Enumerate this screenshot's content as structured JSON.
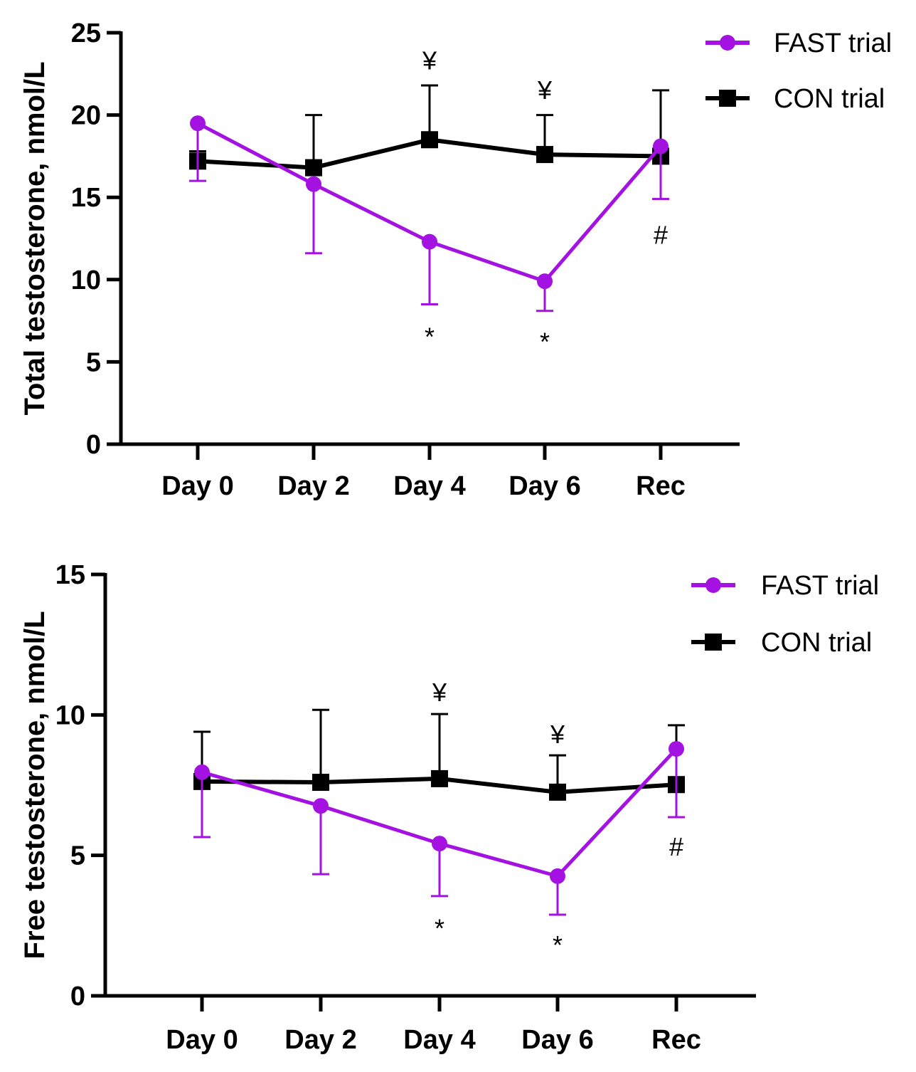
{
  "colors": {
    "fast": "#a312e0",
    "con": "#000000"
  },
  "chart_data": [
    {
      "type": "line",
      "ylabel": "Total testosterone, nmol/L",
      "categories": [
        "Day 0",
        "Day 2",
        "Day 4",
        "Day 6",
        "Rec"
      ],
      "ylim": [
        0,
        25
      ],
      "yticks": [
        "0",
        "5",
        "10",
        "15",
        "20",
        "25"
      ],
      "legend_position": "top-right",
      "series": [
        {
          "name": "FAST trial",
          "marker": "circle",
          "values": [
            19.5,
            15.8,
            12.3,
            9.9,
            18.1
          ],
          "error_down": [
            3.5,
            4.2,
            3.8,
            1.8,
            3.2
          ]
        },
        {
          "name": "CON trial",
          "marker": "square",
          "values": [
            17.2,
            16.8,
            18.5,
            17.6,
            17.5
          ],
          "error_up": [
            0.6,
            3.2,
            3.3,
            2.4,
            4.0
          ]
        }
      ],
      "annotations": [
        {
          "text": "¥",
          "category": "Day 4",
          "value": 23.3
        },
        {
          "text": "¥",
          "category": "Day 6",
          "value": 21.5
        },
        {
          "text": "*",
          "category": "Day 4",
          "value": 6.5
        },
        {
          "text": "*",
          "category": "Day 6",
          "value": 6.2
        },
        {
          "text": "#",
          "category": "Rec",
          "value": 12.7
        }
      ]
    },
    {
      "type": "line",
      "ylabel": "Free testosterone, nmol/L",
      "categories": [
        "Day 0",
        "Day 2",
        "Day 4",
        "Day 6",
        "Rec"
      ],
      "ylim": [
        0,
        15
      ],
      "yticks": [
        "0",
        "5",
        "10",
        "15"
      ],
      "legend_position": "top-right",
      "series": [
        {
          "name": "FAST trial",
          "marker": "circle",
          "values": [
            7.96,
            6.76,
            5.42,
            4.26,
            8.79
          ],
          "error_down": [
            2.31,
            2.43,
            1.87,
            1.37,
            2.43
          ]
        },
        {
          "name": "CON trial",
          "marker": "square",
          "values": [
            7.63,
            7.6,
            7.73,
            7.25,
            7.52
          ],
          "error_up": [
            1.77,
            2.58,
            2.3,
            1.31,
            2.11
          ]
        }
      ],
      "annotations": [
        {
          "text": "¥",
          "category": "Day 4",
          "value": 10.8
        },
        {
          "text": "¥",
          "category": "Day 6",
          "value": 9.3
        },
        {
          "text": "*",
          "category": "Day 4",
          "value": 2.4
        },
        {
          "text": "*",
          "category": "Day 6",
          "value": 1.8
        },
        {
          "text": "#",
          "category": "Rec",
          "value": 5.3
        }
      ]
    }
  ]
}
